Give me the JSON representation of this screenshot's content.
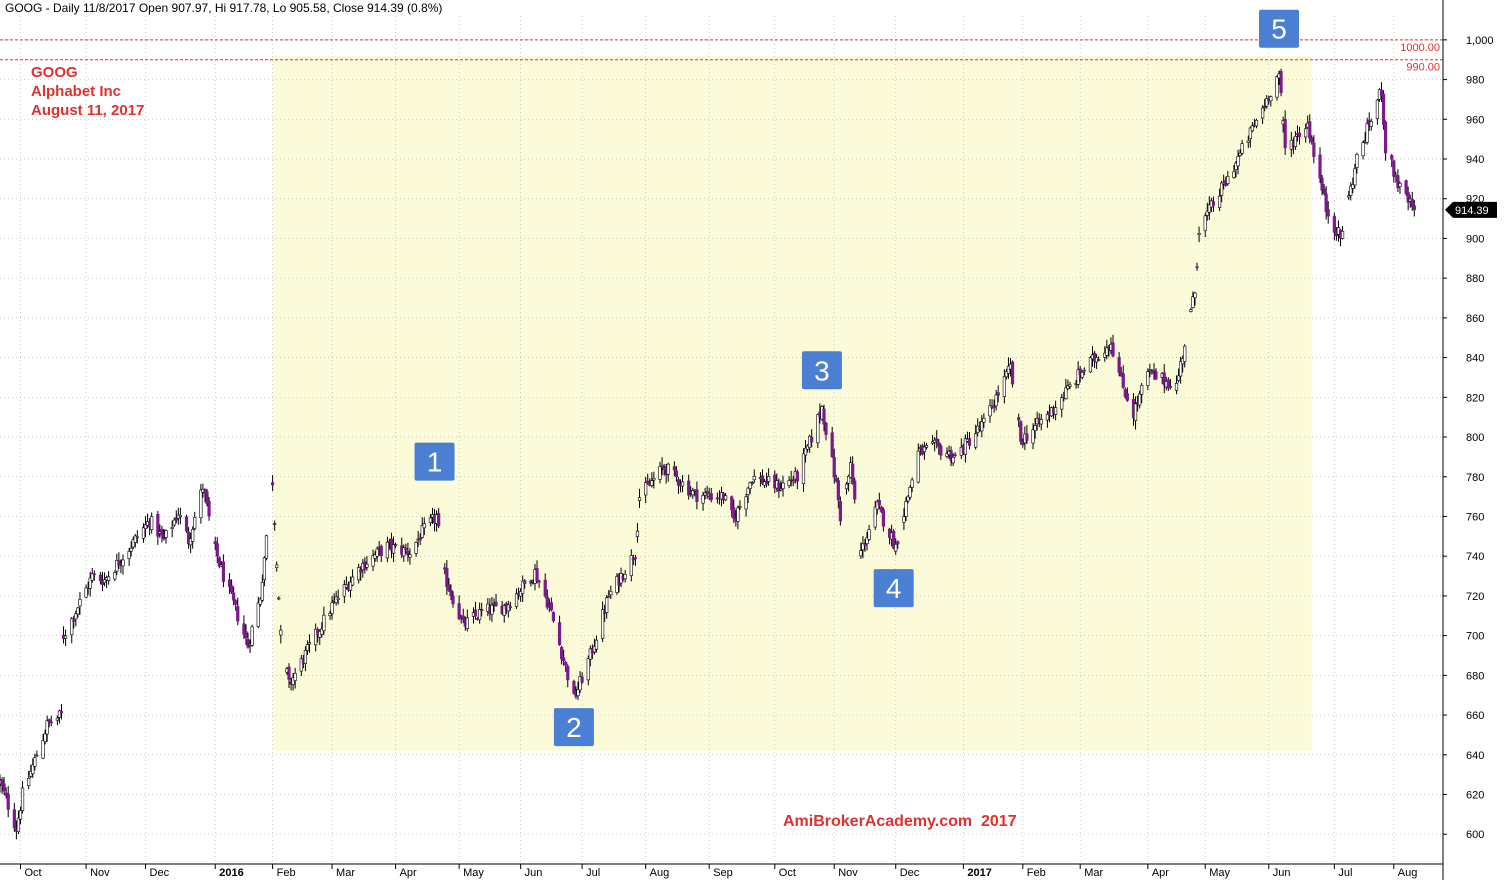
{
  "header": {
    "title": "GOOG - Daily 11/8/2017 Open 907.97, Hi 917.78, Lo 905.58, Close 914.39 (0.8%)"
  },
  "overlay_label": {
    "ticker": "GOOG",
    "company": "Alphabet Inc",
    "date": "August 11, 2017"
  },
  "watermark": "AmiBrokerAcademy.com  2017",
  "last_price_label": "914.39",
  "reference_lines": [
    {
      "value": 1000,
      "label": "1000.00"
    },
    {
      "value": 990,
      "label": "990.00"
    }
  ],
  "wave_labels": [
    {
      "label": "1",
      "date": "2016-04-20",
      "price": 770,
      "placement": "above"
    },
    {
      "label": "2",
      "date": "2016-06-27",
      "price": 668,
      "placement": "below"
    },
    {
      "label": "3",
      "date": "2016-10-26",
      "price": 816,
      "placement": "above"
    },
    {
      "label": "4",
      "date": "2016-11-30",
      "price": 738,
      "placement": "below"
    },
    {
      "label": "5",
      "date": "2017-06-06",
      "price": 988,
      "placement": "above"
    }
  ],
  "highlight_band": {
    "from": "2016-02-01",
    "to": "2017-06-22",
    "low": 642,
    "high": 992
  },
  "colors": {
    "up_candle": "#ffffff",
    "down_candle": "#7b1a8a",
    "wick": "#000000",
    "highlight": "#fbfbd9",
    "reference_line": "#e03030",
    "text_red": "#e03030",
    "box_fill": "#4a7fd4",
    "price_tag": "#000000"
  },
  "chart_data": {
    "type": "candlestick",
    "title": "GOOG - Daily 11/8/2017 Open 907.97, Hi 917.78, Lo 905.58, Close 914.39 (0.8%)",
    "ylim": [
      585,
      1010
    ],
    "xlim": [
      "2015-09-21",
      "2017-08-25"
    ],
    "y_ticks": [
      "600",
      "620",
      "640",
      "660",
      "680",
      "700",
      "720",
      "740",
      "760",
      "780",
      "800",
      "820",
      "840",
      "860",
      "880",
      "900",
      "920",
      "940",
      "960",
      "980",
      "1,000"
    ],
    "x_ticks": [
      {
        "date": "2015-10-01",
        "label": "Oct",
        "bold": false
      },
      {
        "date": "2015-11-02",
        "label": "Nov",
        "bold": false
      },
      {
        "date": "2015-12-01",
        "label": "Dec",
        "bold": false
      },
      {
        "date": "2016-01-04",
        "label": "2016",
        "bold": true
      },
      {
        "date": "2016-02-01",
        "label": "Feb",
        "bold": false
      },
      {
        "date": "2016-03-01",
        "label": "Mar",
        "bold": false
      },
      {
        "date": "2016-04-01",
        "label": "Apr",
        "bold": false
      },
      {
        "date": "2016-05-02",
        "label": "May",
        "bold": false
      },
      {
        "date": "2016-06-01",
        "label": "Jun",
        "bold": false
      },
      {
        "date": "2016-07-01",
        "label": "Jul",
        "bold": false
      },
      {
        "date": "2016-08-01",
        "label": "Aug",
        "bold": false
      },
      {
        "date": "2016-09-01",
        "label": "Sep",
        "bold": false
      },
      {
        "date": "2016-10-03",
        "label": "Oct",
        "bold": false
      },
      {
        "date": "2016-11-01",
        "label": "Nov",
        "bold": false
      },
      {
        "date": "2016-12-01",
        "label": "Dec",
        "bold": false
      },
      {
        "date": "2017-01-03",
        "label": "2017",
        "bold": true
      },
      {
        "date": "2017-02-01",
        "label": "Feb",
        "bold": false
      },
      {
        "date": "2017-03-01",
        "label": "Mar",
        "bold": false
      },
      {
        "date": "2017-04-03",
        "label": "Apr",
        "bold": false
      },
      {
        "date": "2017-05-01",
        "label": "May",
        "bold": false
      },
      {
        "date": "2017-06-01",
        "label": "Jun",
        "bold": false
      },
      {
        "date": "2017-07-03",
        "label": "Jul",
        "bold": false
      },
      {
        "date": "2017-08-01",
        "label": "Aug",
        "bold": false
      }
    ],
    "anchors": [
      [
        "2015-09-21",
        626
      ],
      [
        "2015-09-29",
        603
      ],
      [
        "2015-10-02",
        620
      ],
      [
        "2015-10-09",
        640
      ],
      [
        "2015-10-14",
        655
      ],
      [
        "2015-10-21",
        660
      ],
      [
        "2015-10-22",
        700
      ],
      [
        "2015-10-26",
        708
      ],
      [
        "2015-11-05",
        730
      ],
      [
        "2015-11-11",
        728
      ],
      [
        "2015-11-20",
        740
      ],
      [
        "2015-12-03",
        758
      ],
      [
        "2015-12-10",
        748
      ],
      [
        "2015-12-17",
        762
      ],
      [
        "2015-12-22",
        748
      ],
      [
        "2015-12-29",
        775
      ],
      [
        "2016-01-04",
        743
      ],
      [
        "2016-01-08",
        730
      ],
      [
        "2016-01-15",
        710
      ],
      [
        "2016-01-20",
        695
      ],
      [
        "2016-01-26",
        720
      ],
      [
        "2016-02-01",
        778
      ],
      [
        "2016-02-05",
        700
      ],
      [
        "2016-02-09",
        675
      ],
      [
        "2016-02-22",
        700
      ],
      [
        "2016-03-01",
        715
      ],
      [
        "2016-03-15",
        735
      ],
      [
        "2016-03-28",
        745
      ],
      [
        "2016-04-08",
        742
      ],
      [
        "2016-04-14",
        752
      ],
      [
        "2016-04-21",
        760
      ],
      [
        "2016-04-25",
        730
      ],
      [
        "2016-05-04",
        705
      ],
      [
        "2016-05-13",
        712
      ],
      [
        "2016-05-25",
        715
      ],
      [
        "2016-06-08",
        732
      ],
      [
        "2016-06-15",
        715
      ],
      [
        "2016-06-24",
        680
      ],
      [
        "2016-06-27",
        668
      ],
      [
        "2016-07-05",
        690
      ],
      [
        "2016-07-14",
        720
      ],
      [
        "2016-07-27",
        742
      ],
      [
        "2016-07-29",
        770
      ],
      [
        "2016-08-10",
        785
      ],
      [
        "2016-08-25",
        771
      ],
      [
        "2016-09-08",
        770
      ],
      [
        "2016-09-13",
        758
      ],
      [
        "2016-09-22",
        780
      ],
      [
        "2016-10-05",
        775
      ],
      [
        "2016-10-14",
        780
      ],
      [
        "2016-10-21",
        800
      ],
      [
        "2016-10-26",
        815
      ],
      [
        "2016-11-02",
        776
      ],
      [
        "2016-11-04",
        760
      ],
      [
        "2016-11-09",
        785
      ],
      [
        "2016-11-14",
        742
      ],
      [
        "2016-11-22",
        765
      ],
      [
        "2016-12-01",
        745
      ],
      [
        "2016-12-12",
        792
      ],
      [
        "2016-12-20",
        795
      ],
      [
        "2016-12-30",
        790
      ],
      [
        "2017-01-13",
        807
      ],
      [
        "2017-01-26",
        835
      ],
      [
        "2017-01-31",
        798
      ],
      [
        "2017-02-14",
        812
      ],
      [
        "2017-03-01",
        832
      ],
      [
        "2017-03-16",
        848
      ],
      [
        "2017-03-21",
        828
      ],
      [
        "2017-03-27",
        812
      ],
      [
        "2017-04-03",
        832
      ],
      [
        "2017-04-17",
        826
      ],
      [
        "2017-04-26",
        873
      ],
      [
        "2017-04-28",
        905
      ],
      [
        "2017-05-12",
        930
      ],
      [
        "2017-05-24",
        955
      ],
      [
        "2017-06-06",
        983
      ],
      [
        "2017-06-09",
        945
      ],
      [
        "2017-06-20",
        958
      ],
      [
        "2017-06-29",
        915
      ],
      [
        "2017-07-06",
        900
      ],
      [
        "2017-07-14",
        940
      ],
      [
        "2017-07-26",
        975
      ],
      [
        "2017-07-28",
        945
      ],
      [
        "2017-08-04",
        925
      ],
      [
        "2017-08-11",
        914
      ]
    ],
    "last_close": 914.39
  }
}
